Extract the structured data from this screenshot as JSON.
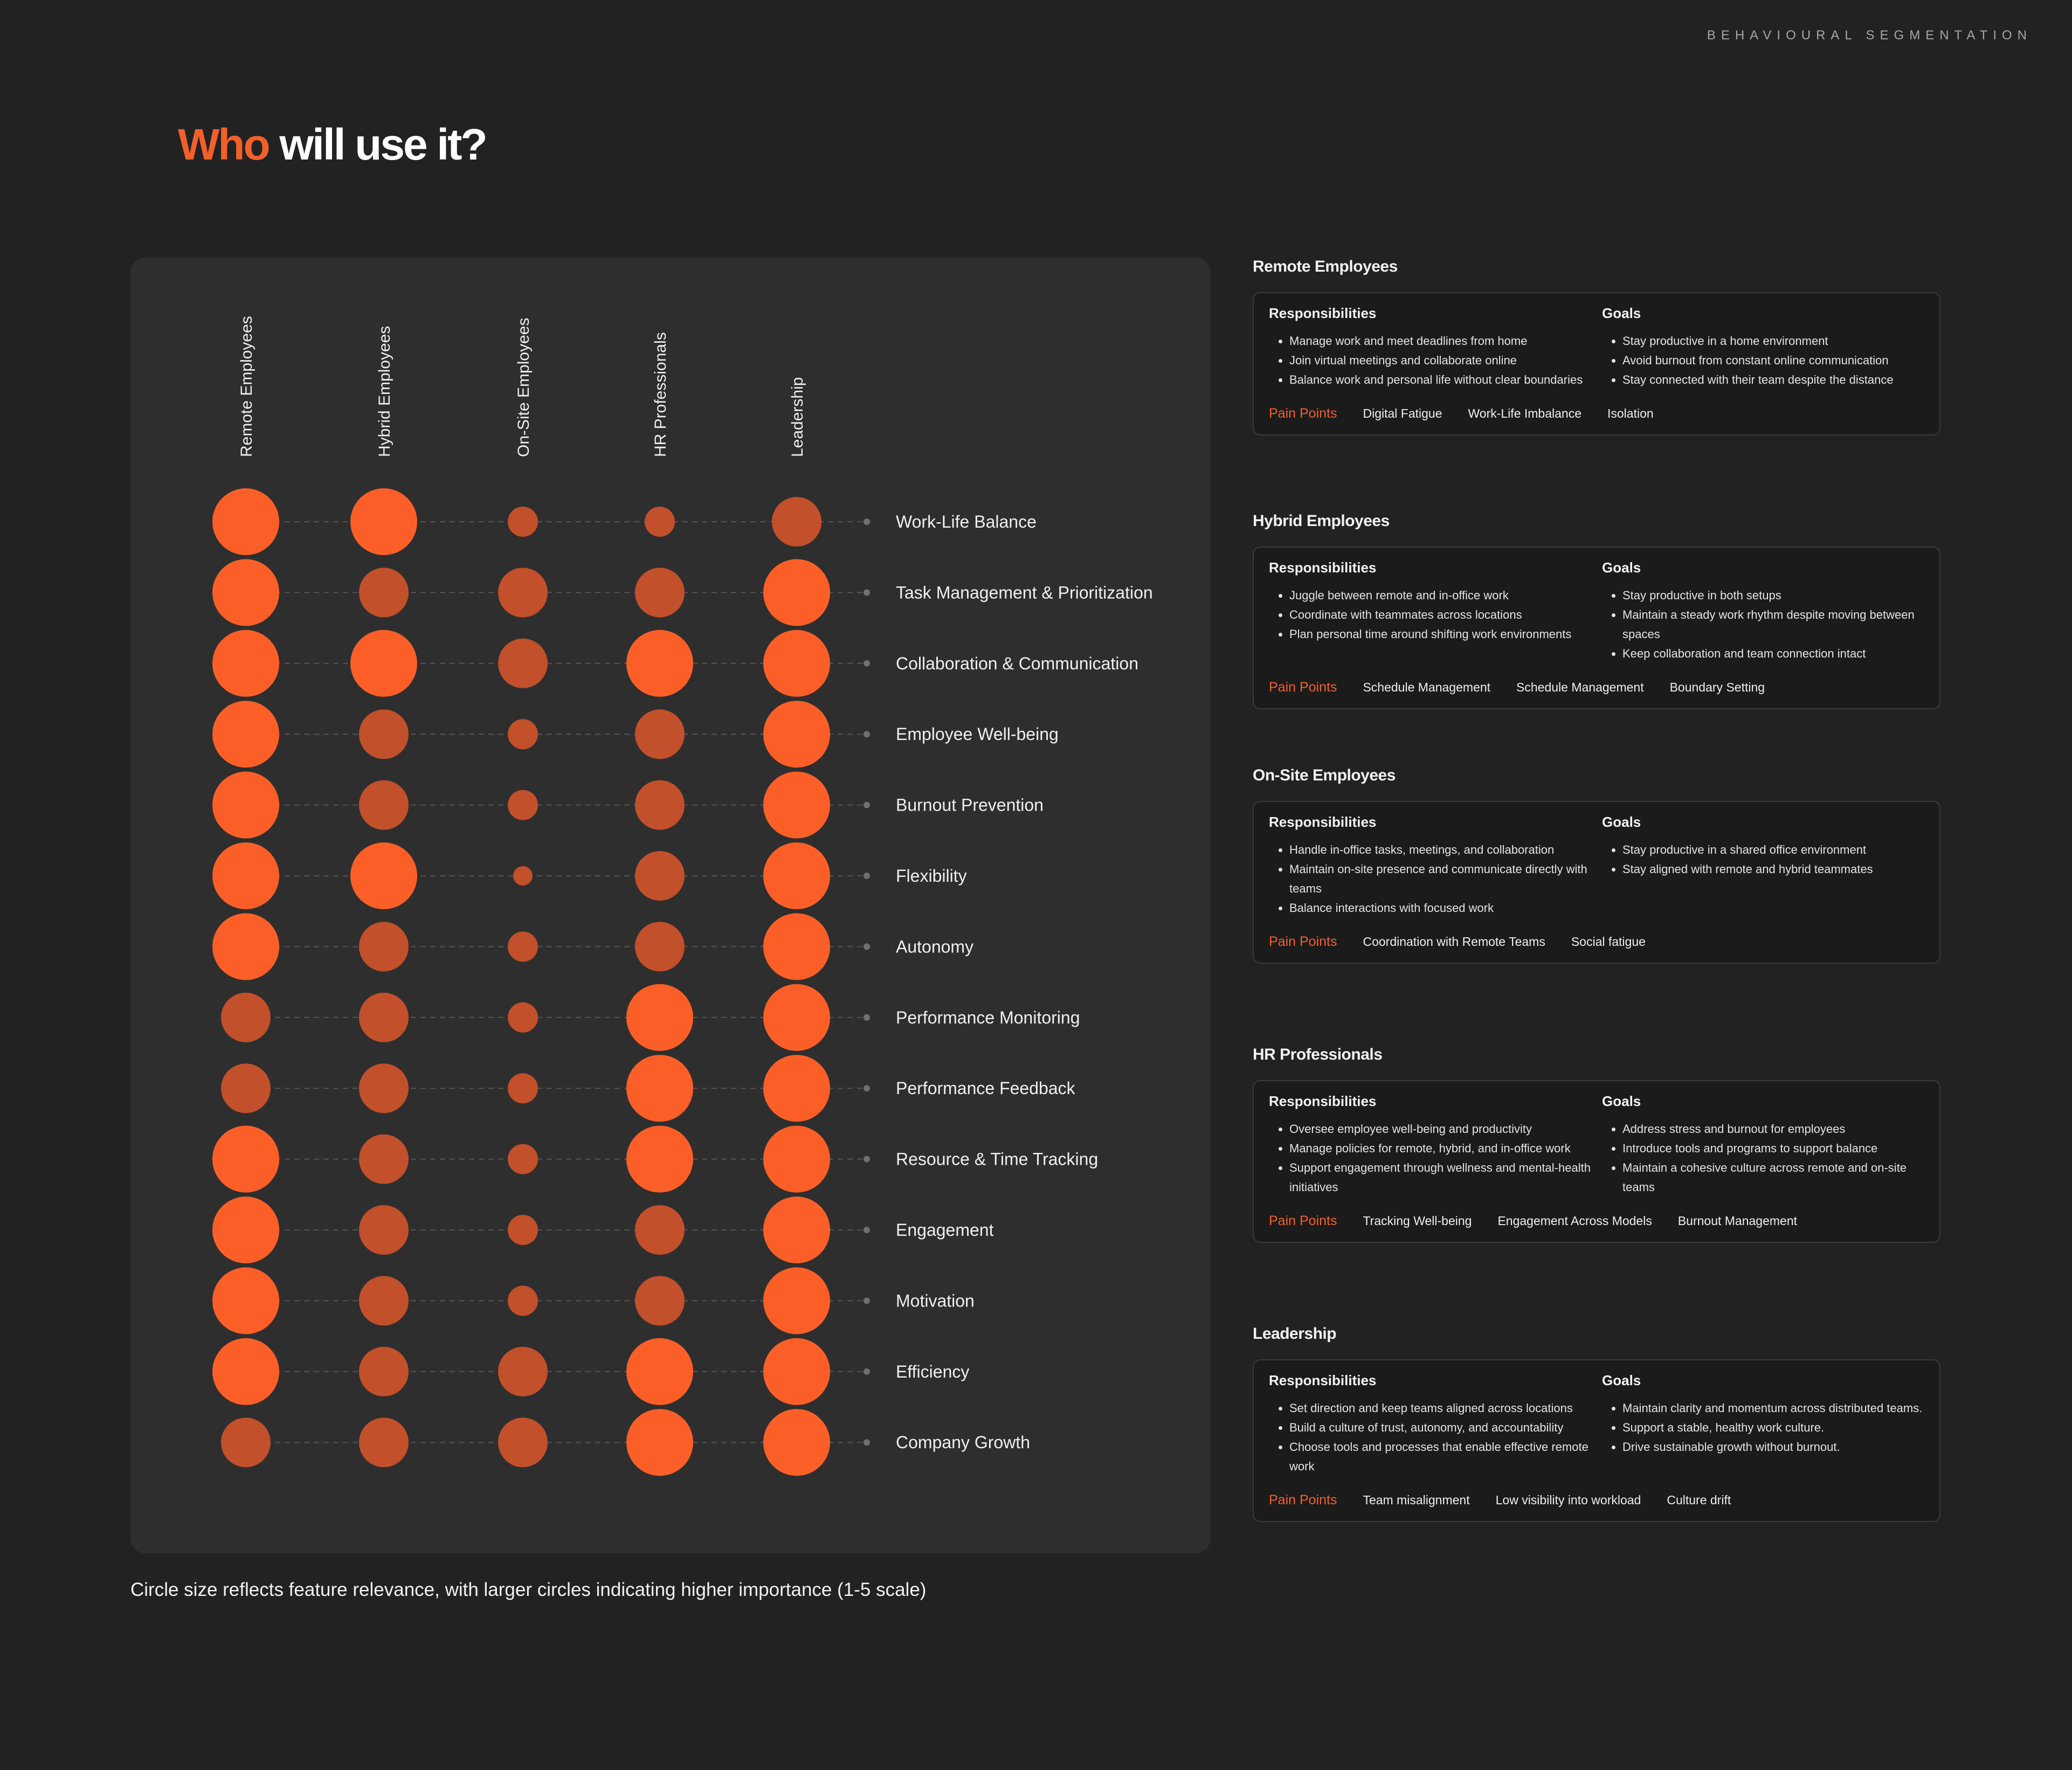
{
  "header": {
    "eyebrow": "BEHAVIOURAL SEGMENTATION"
  },
  "title": {
    "accent": "Who",
    "rest": "will use it?"
  },
  "footnote": "Circle size reflects feature relevance, with larger circles indicating higher importance (1-5 scale)",
  "colors": {
    "background": "#222222",
    "panel": "#2e2e2e",
    "accent": "#f2602a",
    "high": "#fb5f27",
    "mid": "#c1502b",
    "connector": "#555555"
  },
  "chart_data": {
    "type": "bubble-matrix",
    "scale": [
      1,
      5
    ],
    "columns": [
      "Remote Employees",
      "Hybrid Employees",
      "On-Site Employees",
      "HR Professionals",
      "Leadership"
    ],
    "rows": [
      "Work-Life Balance",
      "Task Management & Prioritization",
      "Collaboration & Communication",
      "Employee Well-being",
      "Burnout Prevention",
      "Flexibility",
      "Autonomy",
      "Performance Monitoring",
      "Performance Feedback",
      "Resource & Time Tracking",
      "Engagement",
      "Motivation",
      "Efficiency",
      "Company Growth"
    ],
    "values": [
      [
        5,
        5,
        2,
        2,
        3
      ],
      [
        5,
        3,
        3,
        3,
        5
      ],
      [
        5,
        5,
        3,
        5,
        5
      ],
      [
        5,
        3,
        2,
        3,
        5
      ],
      [
        5,
        3,
        2,
        3,
        5
      ],
      [
        5,
        5,
        1,
        3,
        5
      ],
      [
        5,
        3,
        2,
        3,
        5
      ],
      [
        3,
        3,
        2,
        5,
        5
      ],
      [
        3,
        3,
        2,
        5,
        5
      ],
      [
        5,
        3,
        2,
        5,
        5
      ],
      [
        5,
        3,
        2,
        3,
        5
      ],
      [
        5,
        3,
        2,
        3,
        5
      ],
      [
        5,
        3,
        3,
        5,
        5
      ],
      [
        3,
        3,
        3,
        5,
        5
      ]
    ]
  },
  "segments": [
    {
      "name": "Remote Employees",
      "responsibilities_label": "Responsibilities",
      "goals_label": "Goals",
      "responsibilities": [
        "Manage work and meet deadlines from home",
        "Join virtual meetings and collaborate online",
        "Balance work and personal life without clear boundaries"
      ],
      "goals": [
        "Stay productive in a home environment",
        "Avoid burnout from constant online communication",
        "Stay connected with their team despite the distance"
      ],
      "pain_label": "Pain Points",
      "pain_points": [
        "Digital Fatigue",
        "Work-Life Imbalance",
        "Isolation"
      ]
    },
    {
      "name": "Hybrid Employees",
      "responsibilities_label": "Responsibilities",
      "goals_label": "Goals",
      "responsibilities": [
        "Juggle between remote and in-office work",
        "Coordinate with teammates across locations",
        "Plan personal time around shifting work environments"
      ],
      "goals": [
        "Stay productive in both setups",
        "Maintain a steady work rhythm despite moving between spaces",
        "Keep collaboration and team connection intact"
      ],
      "pain_label": "Pain Points",
      "pain_points": [
        "Schedule Management",
        "Schedule Management",
        "Boundary Setting"
      ]
    },
    {
      "name": "On-Site Employees",
      "responsibilities_label": "Responsibilities",
      "goals_label": "Goals",
      "responsibilities": [
        "Handle in-office tasks, meetings, and collaboration",
        "Maintain on-site presence and communicate directly with teams",
        "Balance interactions with focused work"
      ],
      "goals": [
        "Stay productive in a shared office environment",
        "Stay aligned with remote and hybrid teammates"
      ],
      "pain_label": "Pain Points",
      "pain_points": [
        "Coordination with Remote Teams",
        "Social fatigue"
      ]
    },
    {
      "name": "HR Professionals",
      "responsibilities_label": "Responsibilities",
      "goals_label": "Goals",
      "responsibilities": [
        "Oversee employee well-being and productivity",
        "Manage policies for remote, hybrid, and in-office work",
        "Support engagement through wellness and mental-health initiatives"
      ],
      "goals": [
        "Address stress and burnout for employees",
        "Introduce tools and programs to support balance",
        "Maintain a cohesive culture across remote and on-site teams"
      ],
      "pain_label": "Pain Points",
      "pain_points": [
        "Tracking Well-being",
        "Engagement Across Models",
        "Burnout Management"
      ]
    },
    {
      "name": "Leadership",
      "responsibilities_label": "Responsibilities",
      "goals_label": "Goals",
      "responsibilities": [
        "Set direction and keep teams aligned across locations",
        "Build a culture of trust, autonomy, and accountability",
        "Choose tools and processes that enable effective remote work"
      ],
      "goals": [
        "Maintain clarity and momentum across distributed teams.",
        "Support a stable, healthy work culture.",
        "Drive sustainable growth without burnout."
      ],
      "pain_label": "Pain Points",
      "pain_points": [
        "Team misalignment",
        "Low visibility into workload",
        "Culture drift"
      ]
    }
  ]
}
